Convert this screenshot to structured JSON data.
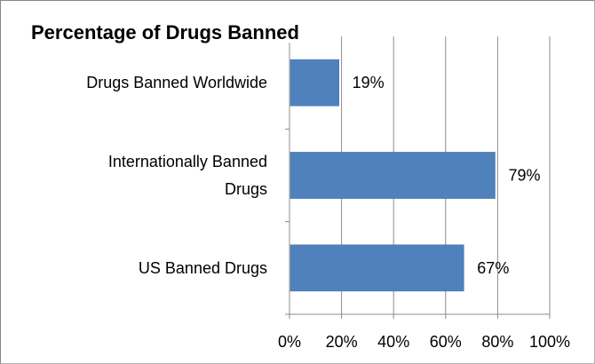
{
  "chart_data": {
    "type": "bar",
    "orientation": "horizontal",
    "title": "Percentage of Drugs Banned",
    "categories": [
      [
        "Drugs Banned Worldwide"
      ],
      [
        "Internationally Banned",
        "Drugs"
      ],
      [
        "US Banned Drugs"
      ]
    ],
    "values": [
      19,
      79,
      67
    ],
    "data_labels": [
      "19%",
      "79%",
      "67%"
    ],
    "xlim": [
      0,
      100
    ],
    "xticks": [
      0,
      20,
      40,
      60,
      80,
      100
    ],
    "xtick_labels": [
      "0%",
      "20%",
      "40%",
      "60%",
      "80%",
      "100%"
    ],
    "grid": true,
    "legend": "none",
    "bar_color": "#4f81bd",
    "bar_edge_color": "#3a6aa3",
    "grid_color": "#8c8c8c",
    "text_color": "#000000"
  }
}
